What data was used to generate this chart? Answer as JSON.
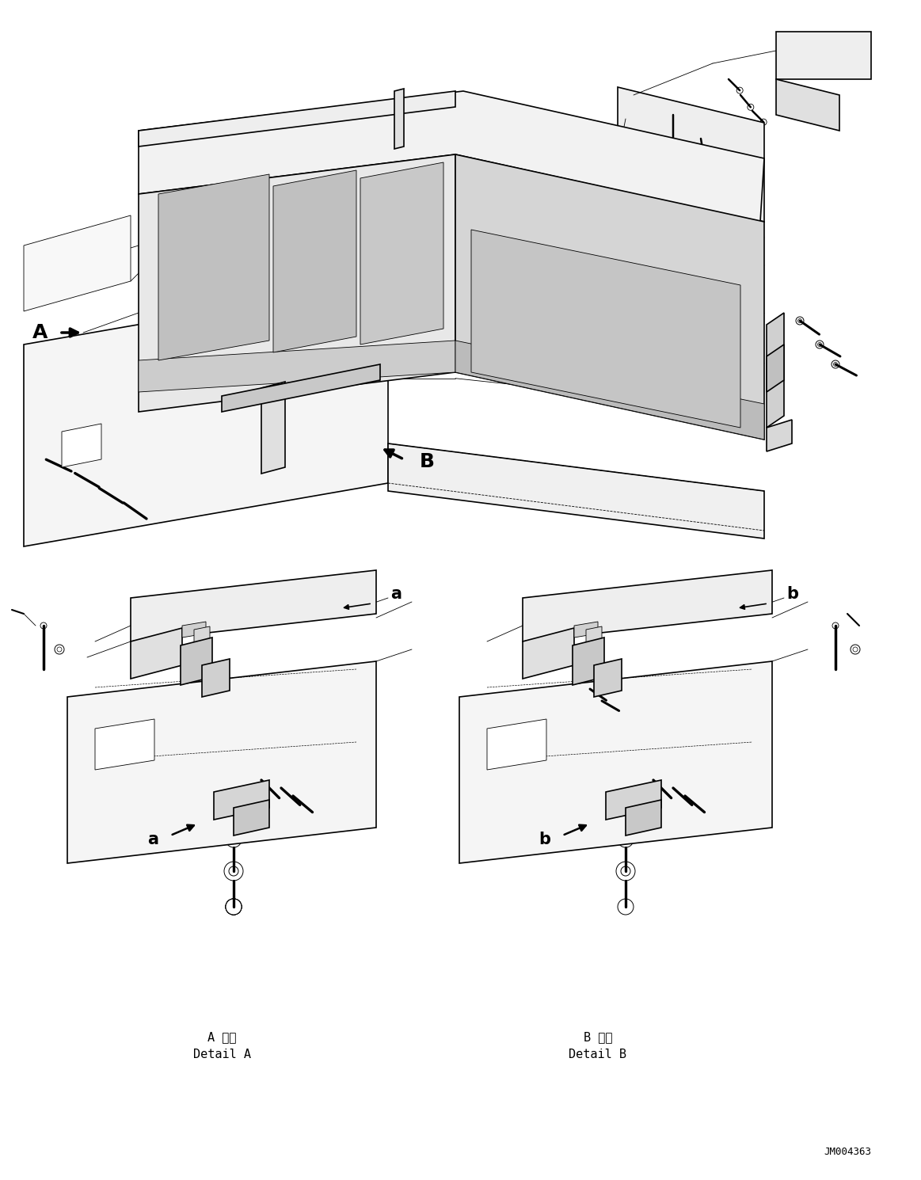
{
  "background_color": "#ffffff",
  "fig_width": 11.63,
  "fig_height": 14.9,
  "dpi": 100,
  "label_A_detail_jp": "A 詳細",
  "label_A_detail_en": "Detail A",
  "label_B_detail_jp": "B 詳細",
  "label_B_detail_en": "Detail B",
  "jm_code": "JM004363",
  "line_color": "#000000",
  "lw_main": 1.2,
  "lw_thin": 0.6,
  "lw_thick": 2.0
}
